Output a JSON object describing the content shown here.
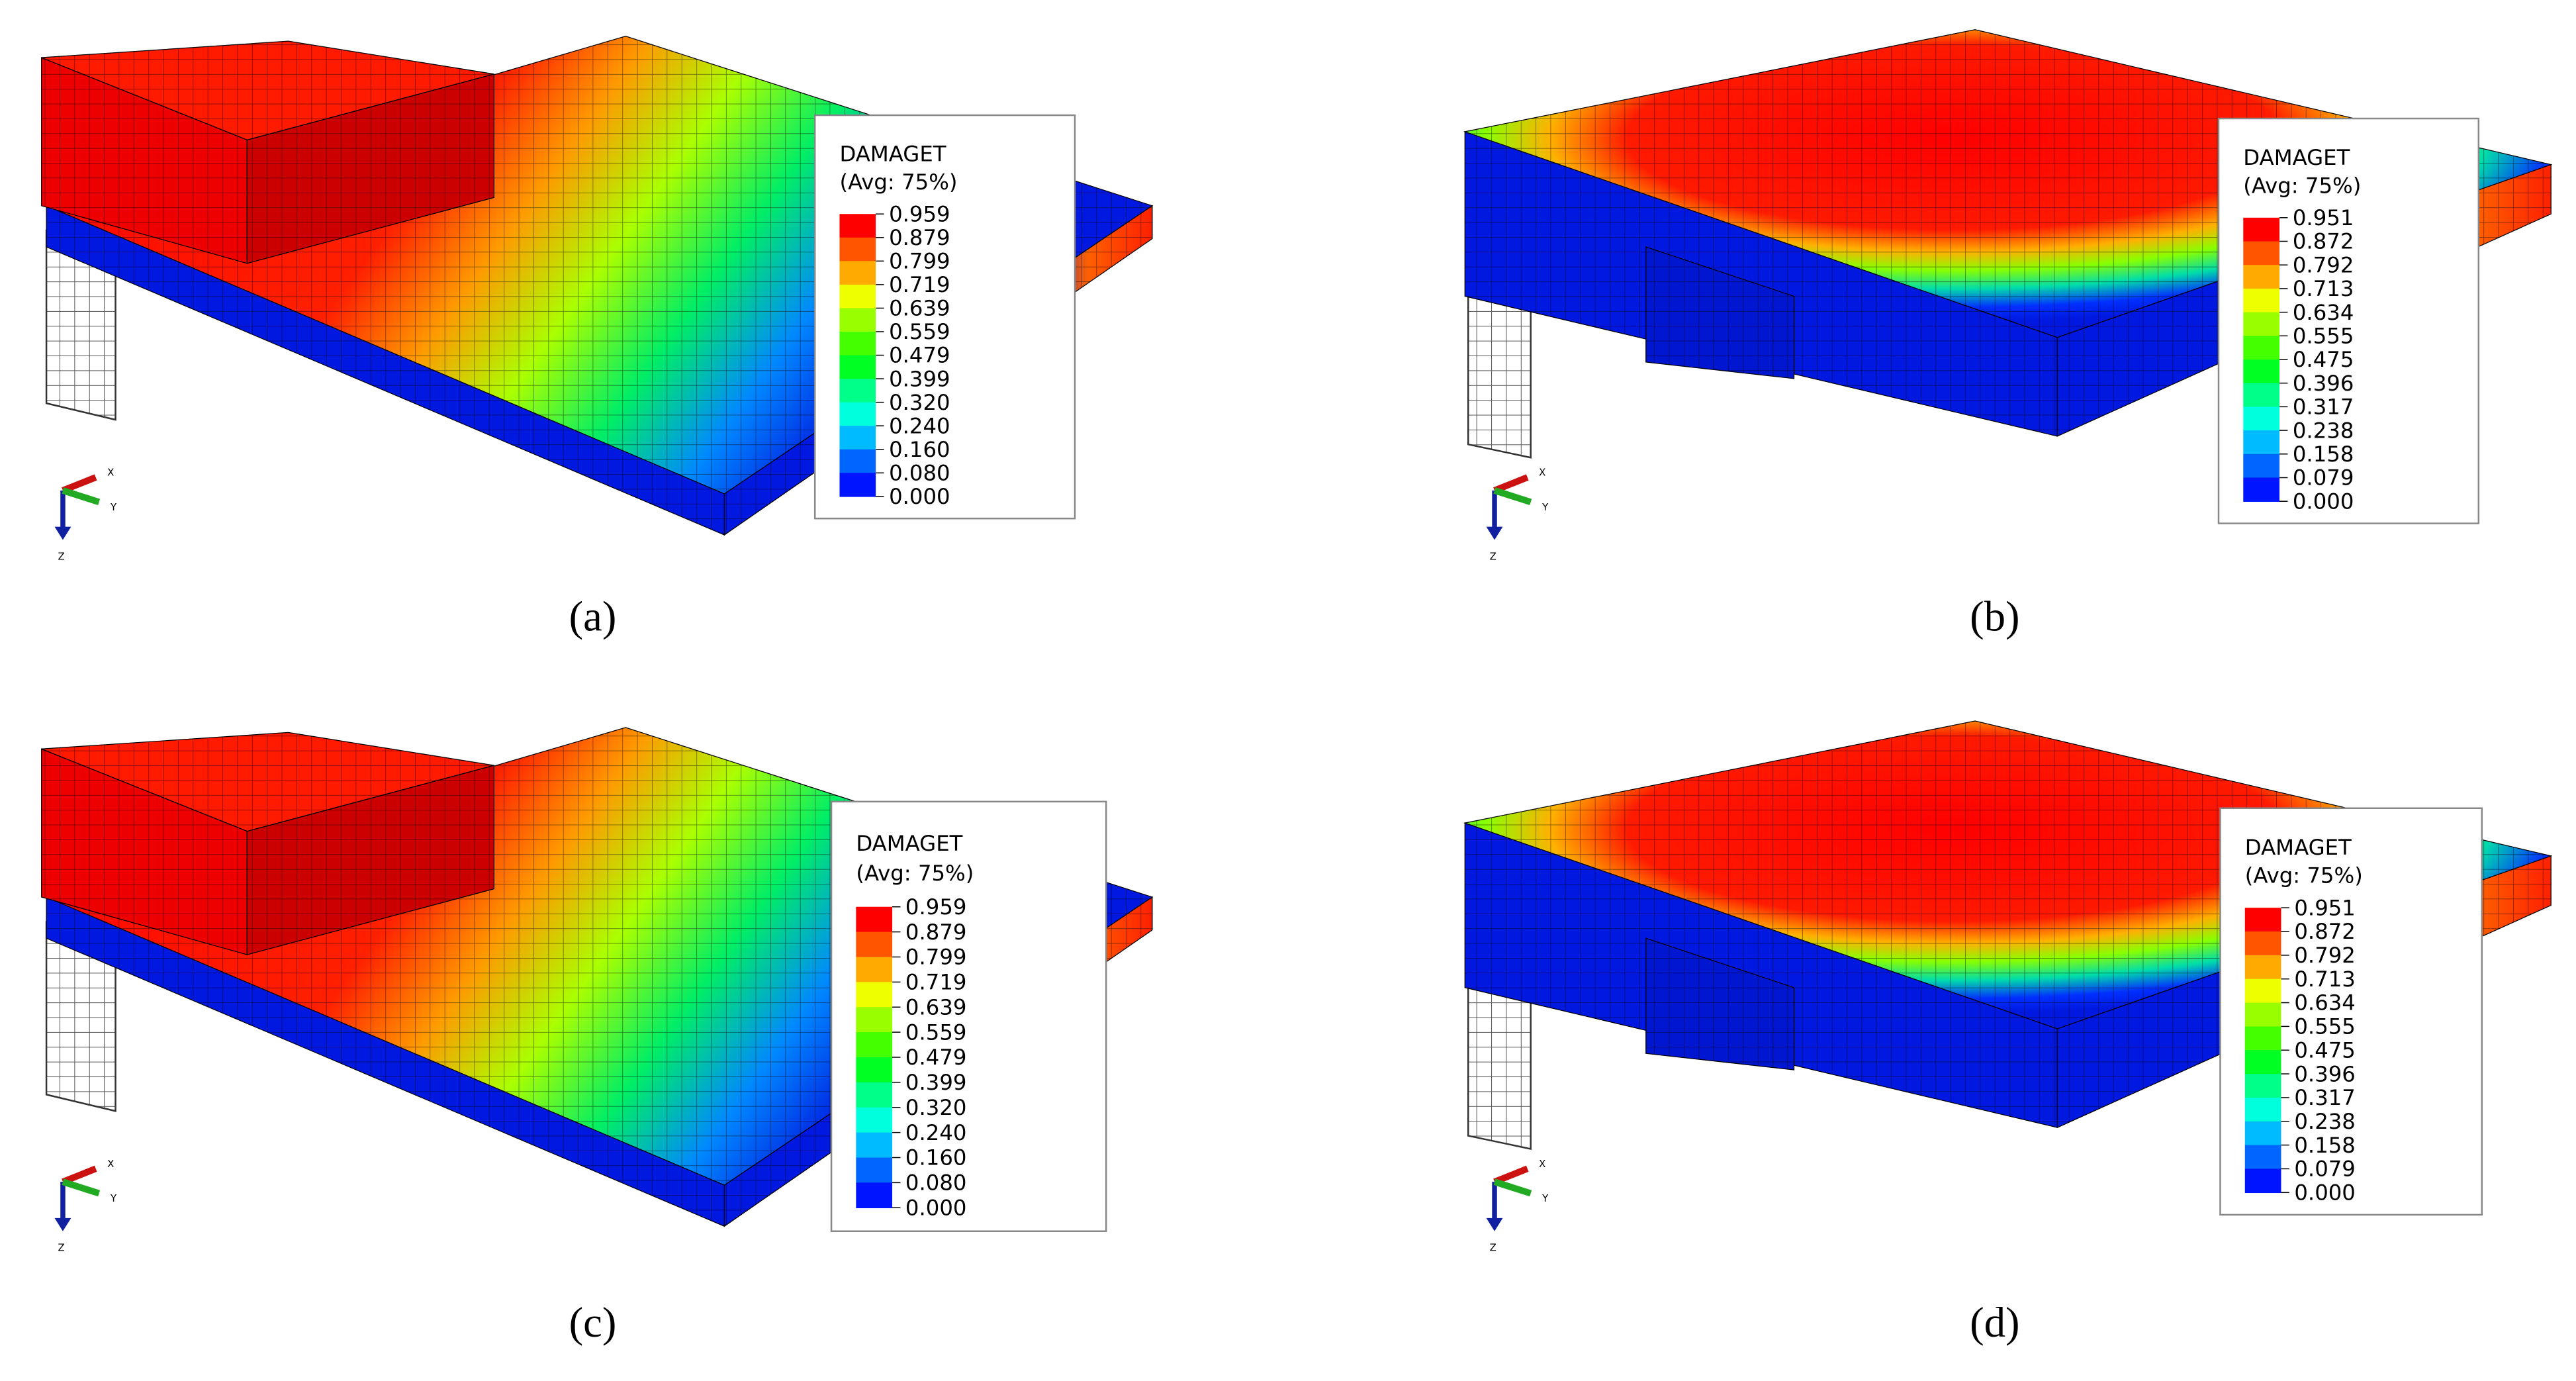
{
  "panels": [
    {
      "label": "(a)",
      "legend": {
        "title": "DAMAGET",
        "subtitle": "(Avg: 75%)",
        "values": [
          "0.959",
          "0.879",
          "0.799",
          "0.719",
          "0.639",
          "0.559",
          "0.479",
          "0.399",
          "0.320",
          "0.240",
          "0.160",
          "0.080",
          "0.000"
        ]
      },
      "triad": {
        "x": "X",
        "y": "Y",
        "z": "Z"
      }
    },
    {
      "label": "(b)",
      "legend": {
        "title": "DAMAGET",
        "subtitle": "(Avg: 75%)",
        "values": [
          "0.951",
          "0.872",
          "0.792",
          "0.713",
          "0.634",
          "0.555",
          "0.475",
          "0.396",
          "0.317",
          "0.238",
          "0.158",
          "0.079",
          "0.000"
        ]
      },
      "triad": {
        "x": "X",
        "y": "Y",
        "z": "Z"
      }
    },
    {
      "label": "(c)",
      "legend": {
        "title": "DAMAGET",
        "subtitle": "(Avg: 75%)",
        "values": [
          "0.959",
          "0.879",
          "0.799",
          "0.719",
          "0.639",
          "0.559",
          "0.479",
          "0.399",
          "0.320",
          "0.240",
          "0.160",
          "0.080",
          "0.000"
        ]
      },
      "triad": {
        "x": "X",
        "y": "Y",
        "z": "Z"
      }
    },
    {
      "label": "(d)",
      "legend": {
        "title": "DAMAGET",
        "subtitle": "(Avg: 75%)",
        "values": [
          "0.951",
          "0.872",
          "0.792",
          "0.713",
          "0.634",
          "0.555",
          "0.475",
          "0.396",
          "0.317",
          "0.238",
          "0.158",
          "0.079",
          "0.000"
        ]
      },
      "triad": {
        "x": "X",
        "y": "Y",
        "z": "Z"
      }
    }
  ]
}
